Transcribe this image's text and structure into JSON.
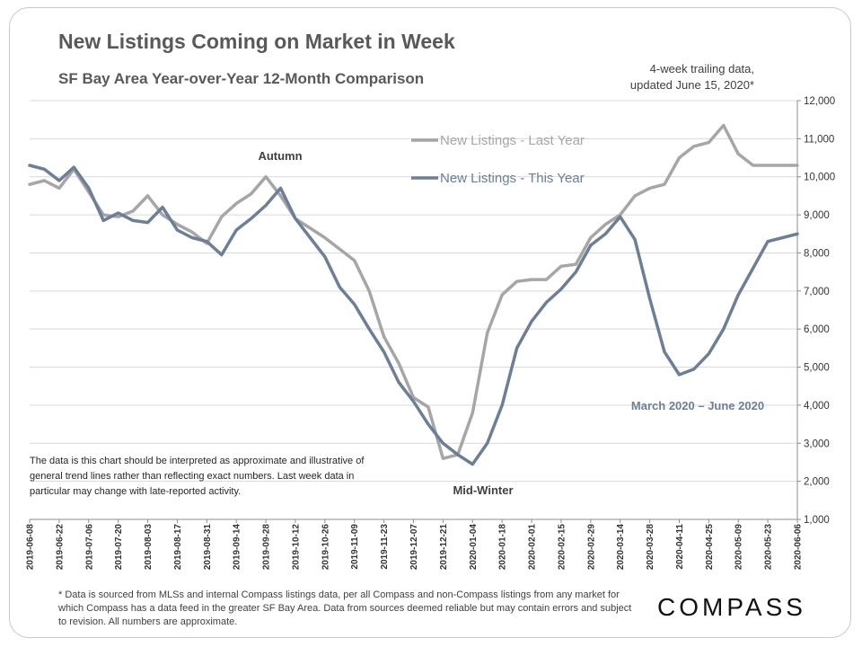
{
  "header": {
    "title": "New Listings Coming on Market in Week",
    "subtitle": "SF Bay Area Year-over-Year  12-Month Comparison",
    "note_line1": "4-week trailing data,",
    "note_line2": "updated June 15, 2020*"
  },
  "disclaimer": "The data is this chart should be interpreted as approximate and illustrative of general trend lines rather than reflecting exact numbers. Last week data in particular may change with late-reported activity.",
  "footnote": "* Data is sourced from MLSs and internal Compass listings data, per all Compass and non-Compass listings from any market for which Compass has a data feed in the greater SF Bay Area. Data from sources deemed reliable but may contain errors and subject to revision. All numbers are approximate.",
  "brand": {
    "logo_text": "COMPASS"
  },
  "chart_data": {
    "type": "line",
    "title": "New Listings Coming on Market in Week",
    "xlabel": "",
    "ylabel": "",
    "ylim": [
      1000,
      12000
    ],
    "grid": true,
    "y_ticks": [
      "1,000",
      "2,000",
      "3,000",
      "4,000",
      "5,000",
      "6,000",
      "7,000",
      "8,000",
      "9,000",
      "10,000",
      "11,000",
      "12,000"
    ],
    "y_tick_values": [
      1000,
      2000,
      3000,
      4000,
      5000,
      6000,
      7000,
      8000,
      9000,
      10000,
      11000,
      12000
    ],
    "x": [
      "2019-06-08",
      "2019-06-15",
      "2019-06-22",
      "2019-06-29",
      "2019-07-06",
      "2019-07-13",
      "2019-07-20",
      "2019-07-27",
      "2019-08-03",
      "2019-08-10",
      "2019-08-17",
      "2019-08-24",
      "2019-08-31",
      "2019-09-07",
      "2019-09-14",
      "2019-09-21",
      "2019-09-28",
      "2019-10-05",
      "2019-10-12",
      "2019-10-19",
      "2019-10-26",
      "2019-11-02",
      "2019-11-09",
      "2019-11-16",
      "2019-11-23",
      "2019-11-30",
      "2019-12-07",
      "2019-12-14",
      "2019-12-21",
      "2019-12-28",
      "2020-01-04",
      "2020-01-11",
      "2020-01-18",
      "2020-01-25",
      "2020-02-01",
      "2020-02-08",
      "2020-02-15",
      "2020-02-22",
      "2020-02-29",
      "2020-03-07",
      "2020-03-14",
      "2020-03-21",
      "2020-03-28",
      "2020-04-04",
      "2020-04-11",
      "2020-04-18",
      "2020-04-25",
      "2020-05-02",
      "2020-05-09",
      "2020-05-16",
      "2020-05-23",
      "2020-05-30",
      "2020-06-06"
    ],
    "x_tick_labels": [
      "2019-06-08",
      "2019-06-22",
      "2019-07-06",
      "2019-07-20",
      "2019-08-03",
      "2019-08-17",
      "2019-08-31",
      "2019-09-14",
      "2019-09-28",
      "2019-10-12",
      "2019-10-26",
      "2019-11-09",
      "2019-11-23",
      "2019-12-07",
      "2019-12-21",
      "2020-01-04",
      "2020-01-18",
      "2020-02-01",
      "2020-02-15",
      "2020-02-29",
      "2020-03-14",
      "2020-03-28",
      "2020-04-11",
      "2020-04-25",
      "2020-05-09",
      "2020-05-23",
      "2020-06-06"
    ],
    "series": [
      {
        "name": "New Listings - Last Year",
        "color": "#a6a6a6",
        "values": [
          9800,
          9900,
          9700,
          10200,
          9600,
          9000,
          8950,
          9100,
          9500,
          9000,
          8750,
          8550,
          8250,
          8950,
          9300,
          9550,
          10000,
          9500,
          8900,
          8650,
          8400,
          8100,
          7800,
          7000,
          5800,
          5100,
          4200,
          3950,
          2600,
          2700,
          3800,
          5900,
          6900,
          7250,
          7300,
          7300,
          7650,
          7700,
          8400,
          8750,
          9000,
          9500,
          9700,
          9800,
          10500,
          10800,
          10900,
          11350,
          10600,
          10300,
          10300,
          10300,
          10300
        ]
      },
      {
        "name": "New Listings - This Year",
        "color": "#6d7f97",
        "values": [
          10300,
          10200,
          9900,
          10250,
          9700,
          8850,
          9050,
          8850,
          8800,
          9200,
          8600,
          8400,
          8300,
          7950,
          8600,
          8900,
          9250,
          9700,
          8900,
          8400,
          7900,
          7100,
          6650,
          6000,
          5400,
          4600,
          4100,
          3500,
          3000,
          2700,
          2450,
          3000,
          4000,
          5500,
          6200,
          6700,
          7050,
          7500,
          8200,
          8500,
          8950,
          8350,
          6800,
          5400,
          4800,
          4950,
          5350,
          6000,
          6900,
          7600,
          8300,
          8400,
          8500
        ]
      }
    ],
    "annotations": [
      "Autumn",
      "Mid-Winter",
      "March 2020 – June 2020"
    ]
  }
}
